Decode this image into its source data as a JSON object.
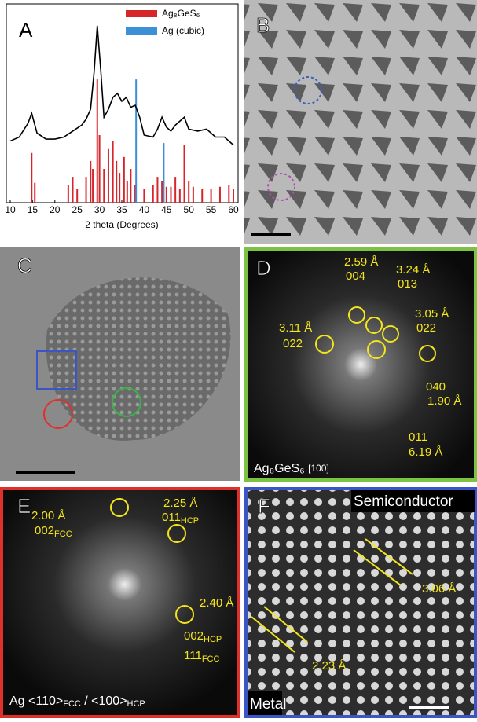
{
  "chart_data": {
    "type": "line",
    "panel": "A",
    "xlabel": "2 theta (Degrees)",
    "color": "#000000",
    "x": [
      10,
      12,
      14,
      14.8,
      16,
      18,
      20,
      22,
      24,
      26,
      27,
      28,
      28.8,
      29.5,
      30.3,
      31,
      32,
      33,
      34,
      35,
      36,
      37,
      38,
      39,
      40,
      42,
      43,
      44,
      45,
      46,
      47,
      48,
      49,
      50,
      52,
      54,
      56,
      58,
      60
    ],
    "values": [
      31,
      33,
      40,
      45,
      35,
      32,
      32,
      33,
      36,
      39,
      42,
      47,
      66,
      89,
      66,
      43,
      47,
      53,
      55,
      51,
      53,
      48,
      49,
      43,
      34,
      33,
      37,
      43,
      38,
      36,
      39,
      41,
      43,
      37,
      36,
      37,
      33,
      33,
      29
    ],
    "series": [
      {
        "name": "Ag₈GeS₆",
        "color": "#d7262b",
        "x": [
          14.8,
          15.5,
          23,
          24,
          25,
          27,
          28,
          28.5,
          29.5,
          30,
          31,
          32,
          33,
          33.8,
          34.5,
          35.5,
          36.2,
          37,
          38,
          40,
          42,
          43,
          44,
          45,
          46,
          47,
          48,
          49,
          50,
          51,
          53,
          55,
          57,
          59,
          60
        ],
        "values": [
          25,
          10,
          9,
          13,
          7,
          13,
          21,
          17,
          62,
          34,
          17,
          27,
          31,
          21,
          15,
          23,
          11,
          17,
          9,
          7,
          9,
          13,
          11,
          8,
          8,
          13,
          7,
          29,
          11,
          8,
          7,
          7,
          8,
          9,
          7
        ]
      },
      {
        "name": "Ag (cubic)",
        "color": "#3d8fd6",
        "x": [
          38.2,
          44.4
        ],
        "values": [
          62,
          30
        ]
      }
    ],
    "xlim": [
      10,
      60
    ],
    "xticks": [
      10,
      15,
      20,
      25,
      30,
      35,
      40,
      45,
      50,
      55,
      60
    ],
    "ylim": [
      0,
      100
    ]
  },
  "panels": {
    "B": {
      "label": "B"
    },
    "C": {
      "label": "C"
    },
    "D": {
      "label": "D",
      "caption": "Ag₈GeS₆",
      "caption_note": "[100]",
      "notes": [
        "2.59 Å",
        "004",
        "3.24 Å",
        "013",
        "3.05 Å",
        "022",
        "3.11 Å",
        "022",
        "040",
        "1.90 Å",
        "011",
        "6.19 Å"
      ]
    },
    "E": {
      "label": "E",
      "caption": "Ag <110>",
      "caption_sub1": "FCC",
      "caption_mid": " / <100>",
      "caption_sub2": "HCP",
      "notes": [
        "2.00 Å",
        "002",
        "FCC",
        "2.25 Å",
        "011",
        "HCP",
        "2.40 Å",
        "002",
        "HCP",
        "111",
        "FCC"
      ]
    },
    "F": {
      "label": "F",
      "top": "Semiconductor",
      "bottom": "Metal",
      "notes": [
        "3.06 Å",
        "2.23 Å"
      ]
    }
  }
}
